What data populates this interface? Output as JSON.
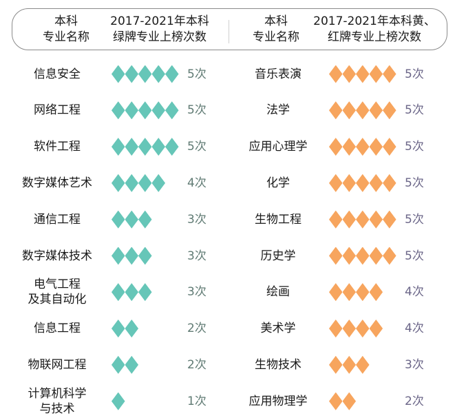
{
  "header": {
    "left_name_col": [
      "本科",
      "专业名称"
    ],
    "left_count_col": [
      "2017-2021年本科",
      "绿牌专业上榜次数"
    ],
    "right_name_col": [
      "本科",
      "专业名称"
    ],
    "right_count_col": [
      "2017-2021年本科黄、",
      "红牌专业上榜次数"
    ]
  },
  "colors": {
    "green_diamond": "#66c6b8",
    "orange_diamond": "#f7a55e",
    "green_count_text": "#5f7a73",
    "orange_count_text": "#6b6688",
    "header_border": "#8a8a8a"
  },
  "left": {
    "rows": [
      {
        "name": [
          "信息安全"
        ],
        "count": 5,
        "label": "5次"
      },
      {
        "name": [
          "网络工程"
        ],
        "count": 5,
        "label": "5次"
      },
      {
        "name": [
          "软件工程"
        ],
        "count": 5,
        "label": "5次"
      },
      {
        "name": [
          "数字媒体艺术"
        ],
        "count": 4,
        "label": "4次"
      },
      {
        "name": [
          "通信工程"
        ],
        "count": 3,
        "label": "3次"
      },
      {
        "name": [
          "数字媒体技术"
        ],
        "count": 3,
        "label": "3次"
      },
      {
        "name": [
          "电气工程",
          "及其自动化"
        ],
        "count": 3,
        "label": "3次"
      },
      {
        "name": [
          "信息工程"
        ],
        "count": 2,
        "label": "2次"
      },
      {
        "name": [
          "物联网工程"
        ],
        "count": 2,
        "label": "2次"
      },
      {
        "name": [
          "计算机科学",
          "与技术"
        ],
        "count": 1,
        "label": "1次"
      }
    ]
  },
  "right": {
    "rows": [
      {
        "name": [
          "音乐表演"
        ],
        "count": 5,
        "label": "5次"
      },
      {
        "name": [
          "法学"
        ],
        "count": 5,
        "label": "5次"
      },
      {
        "name": [
          "应用心理学"
        ],
        "count": 5,
        "label": "5次"
      },
      {
        "name": [
          "化学"
        ],
        "count": 5,
        "label": "5次"
      },
      {
        "name": [
          "生物工程"
        ],
        "count": 5,
        "label": "5次"
      },
      {
        "name": [
          "历史学"
        ],
        "count": 5,
        "label": "5次"
      },
      {
        "name": [
          "绘画"
        ],
        "count": 4,
        "label": "4次"
      },
      {
        "name": [
          "美术学"
        ],
        "count": 4,
        "label": "4次"
      },
      {
        "name": [
          "生物技术"
        ],
        "count": 3,
        "label": "3次"
      },
      {
        "name": [
          "应用物理学"
        ],
        "count": 2,
        "label": "2次"
      }
    ]
  },
  "chart_data": [
    {
      "type": "bar",
      "title": "2017-2021年本科绿牌专业上榜次数",
      "xlabel": "本科专业名称",
      "ylabel": "上榜次数",
      "categories": [
        "信息安全",
        "网络工程",
        "软件工程",
        "数字媒体艺术",
        "通信工程",
        "数字媒体技术",
        "电气工程及其自动化",
        "信息工程",
        "物联网工程",
        "计算机科学与技术"
      ],
      "values": [
        5,
        5,
        5,
        4,
        3,
        3,
        3,
        2,
        2,
        1
      ],
      "marker": "diamond",
      "color": "#66c6b8"
    },
    {
      "type": "bar",
      "title": "2017-2021年本科黄、红牌专业上榜次数",
      "xlabel": "本科专业名称",
      "ylabel": "上榜次数",
      "categories": [
        "音乐表演",
        "法学",
        "应用心理学",
        "化学",
        "生物工程",
        "历史学",
        "绘画",
        "美术学",
        "生物技术",
        "应用物理学"
      ],
      "values": [
        5,
        5,
        5,
        5,
        5,
        5,
        4,
        4,
        3,
        2
      ],
      "marker": "diamond",
      "color": "#f7a55e"
    }
  ]
}
